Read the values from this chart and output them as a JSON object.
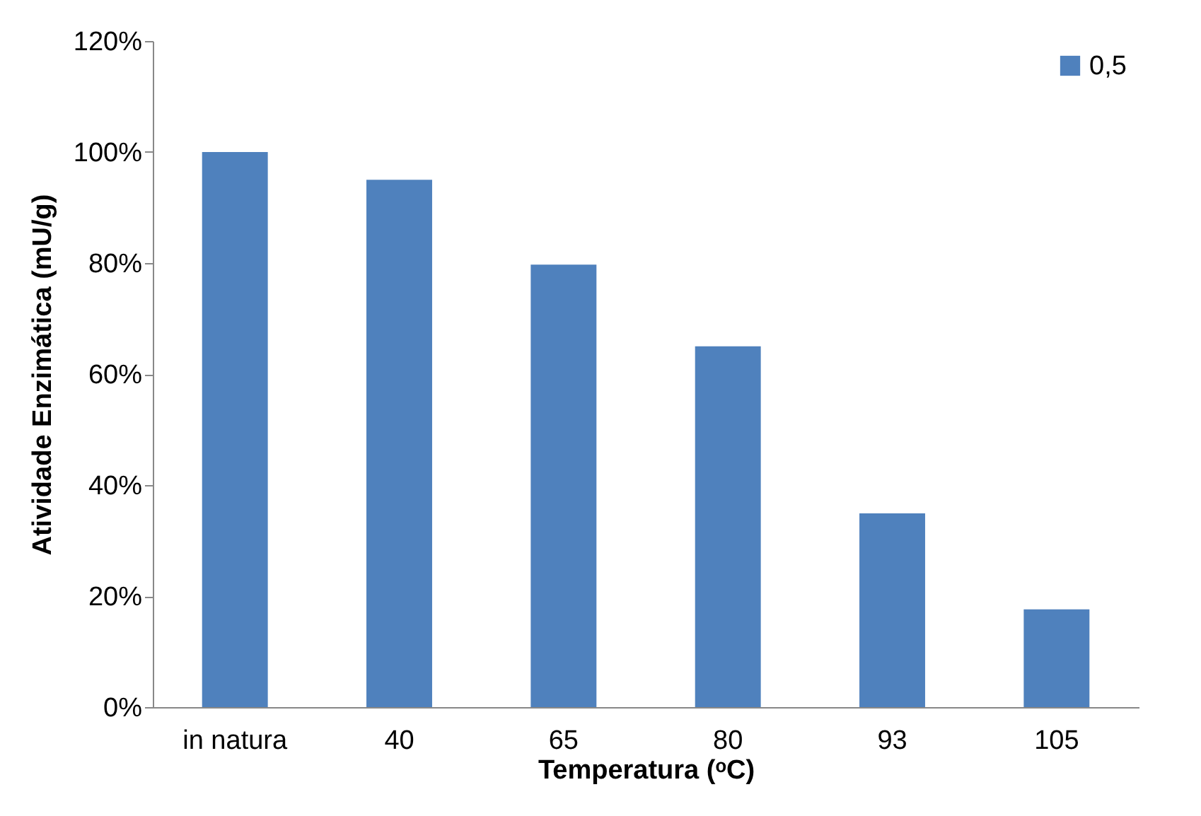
{
  "chart_data": {
    "type": "bar",
    "xlabel": "Temperatura (ᵒC)",
    "ylabel": "Atividade Enzimática (mU/g)",
    "categories": [
      "in natura",
      "40",
      "65",
      "80",
      "93",
      "105"
    ],
    "series": [
      {
        "name": "0,5",
        "color": "#4f81bd",
        "values": [
          100,
          95,
          79.7,
          65,
          34.9,
          17.6
        ]
      }
    ],
    "ylim": [
      0,
      120
    ],
    "yticks": [
      {
        "value": 0,
        "label": "0%"
      },
      {
        "value": 20,
        "label": "20%"
      },
      {
        "value": 40,
        "label": "40%"
      },
      {
        "value": 60,
        "label": "60%"
      },
      {
        "value": 80,
        "label": "80%"
      },
      {
        "value": 100,
        "label": "100%"
      },
      {
        "value": 120,
        "label": "120%"
      }
    ],
    "legend": "top right"
  }
}
